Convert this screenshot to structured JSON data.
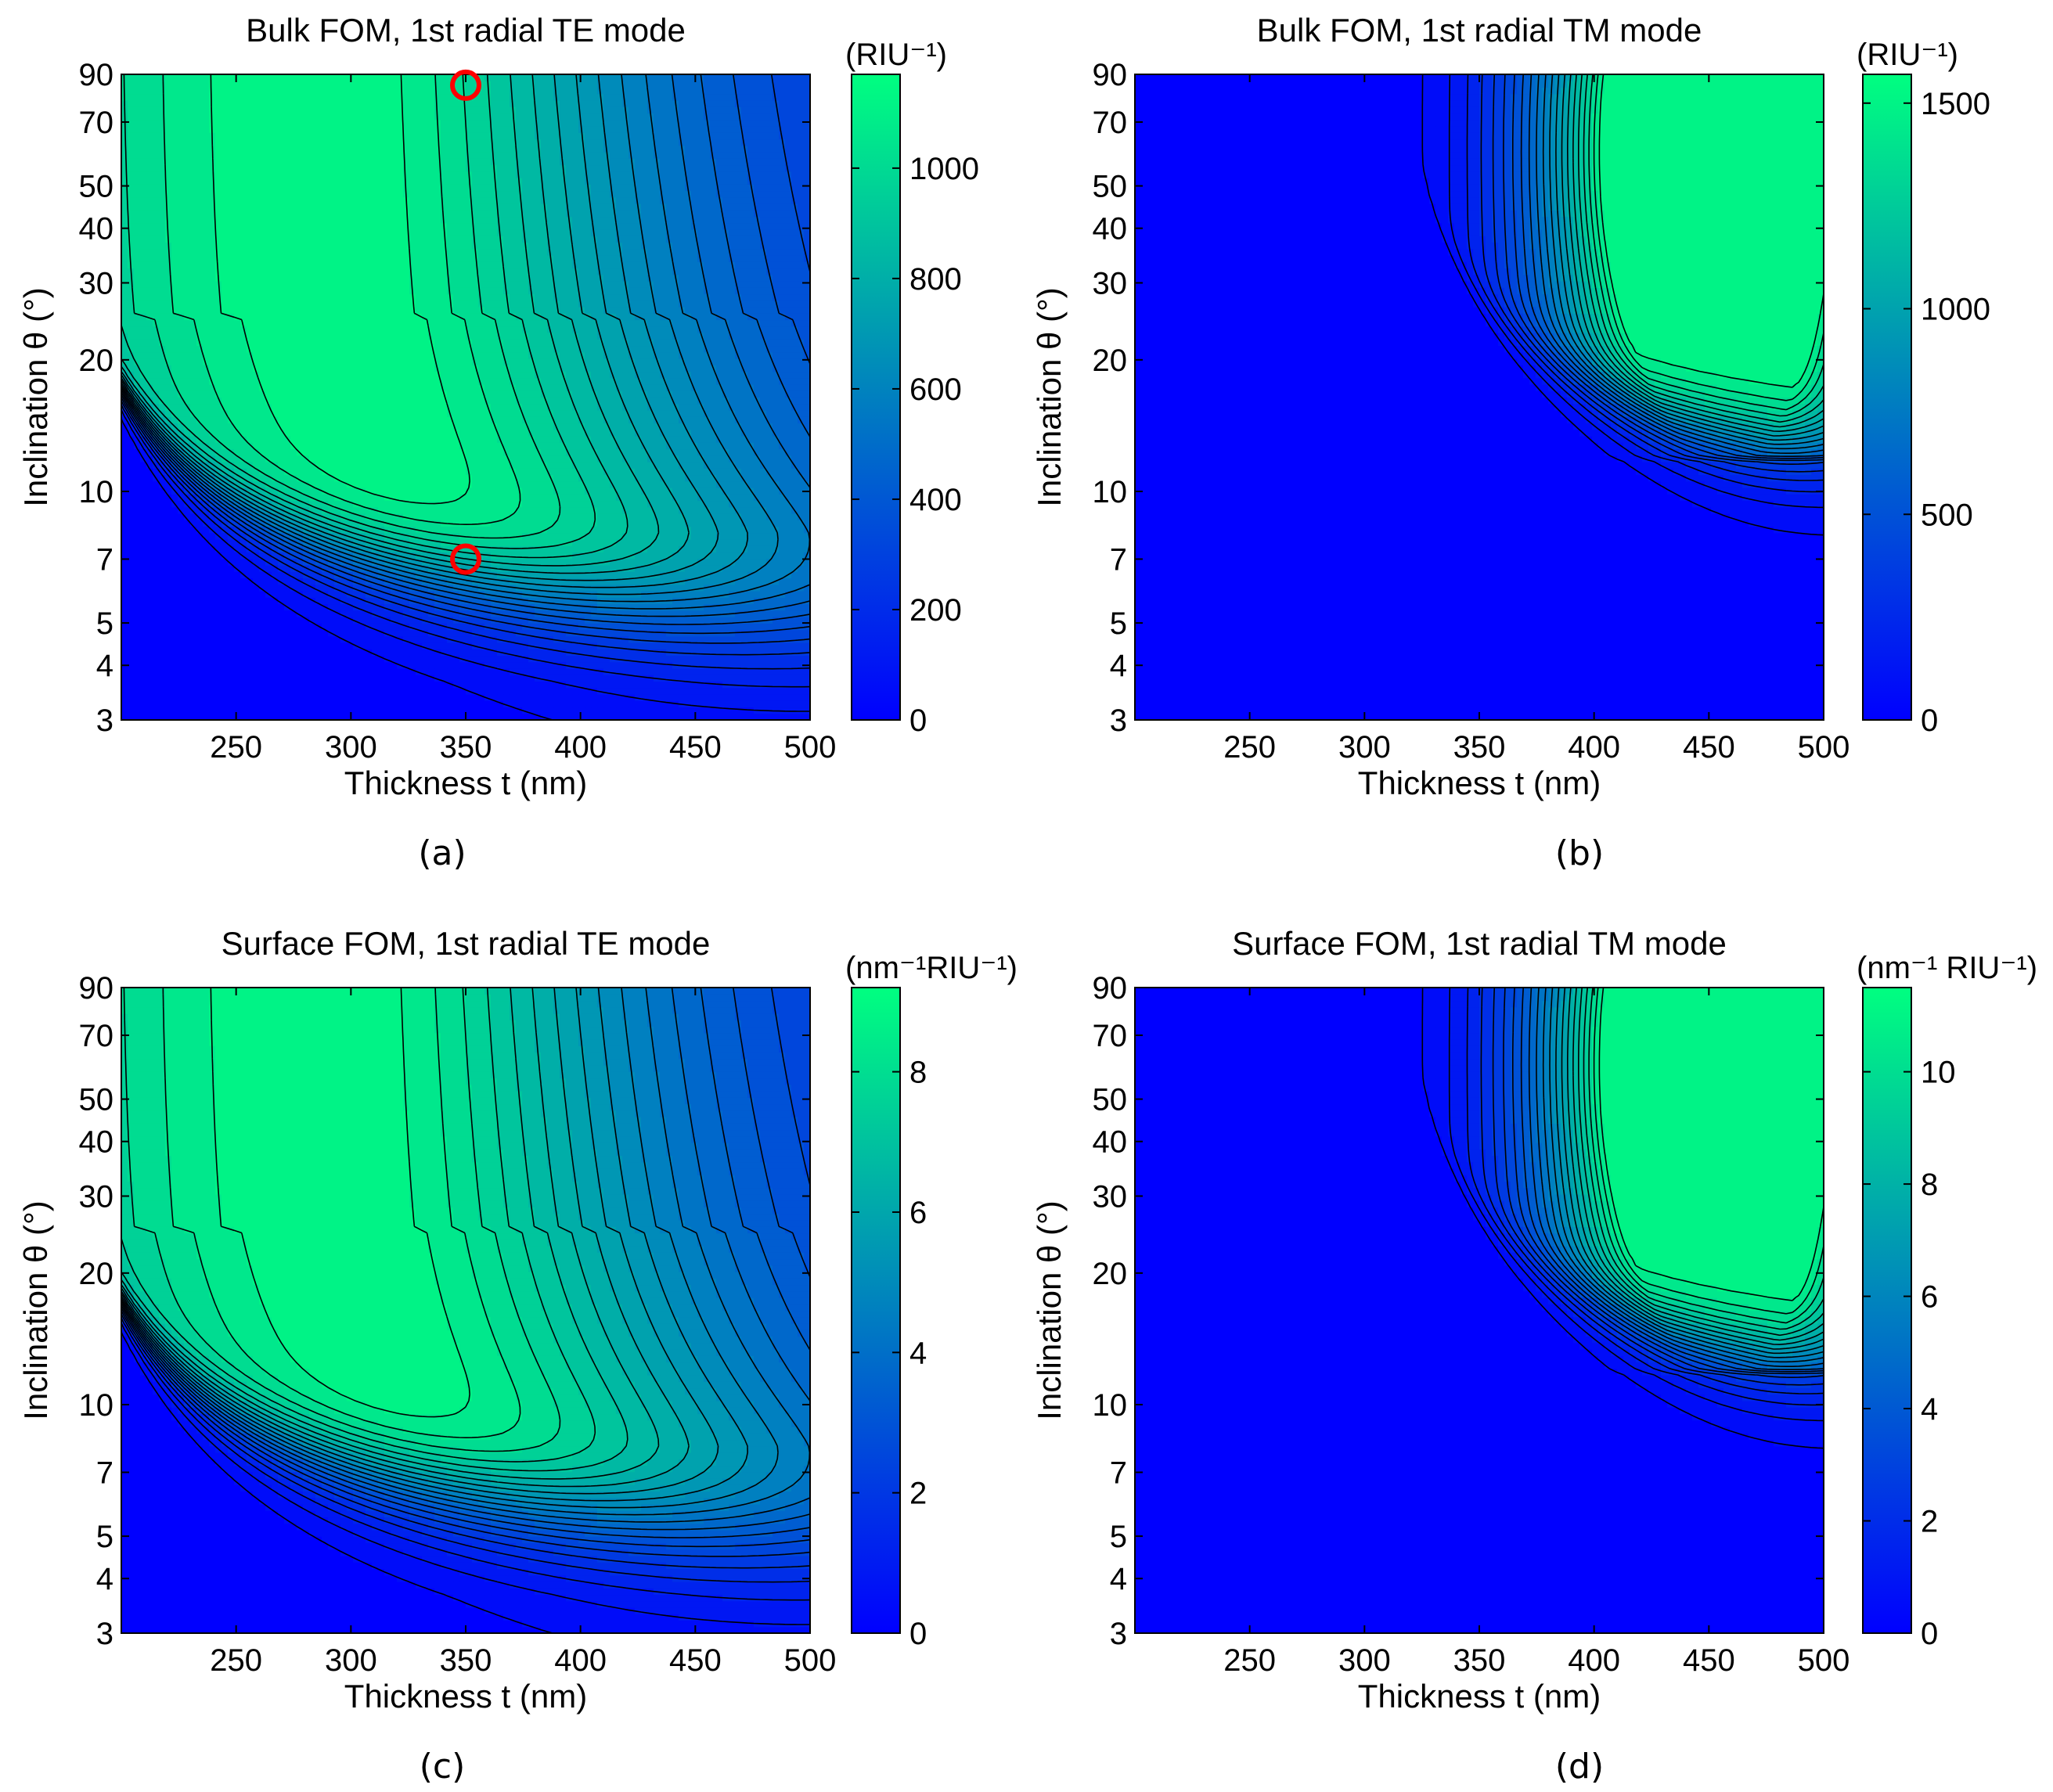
{
  "colors": {
    "low": "#0000ff",
    "high": "#00ff80",
    "contour": "#000000",
    "marker": "#ff0000"
  },
  "chart_data": [
    {
      "type": "contour",
      "panel_label": "(a)",
      "title": "Bulk FOM, 1st radial TE mode",
      "xlabel": "Thickness t (nm)",
      "ylabel": "Inclination  θ (°)",
      "xlim": [
        200,
        500
      ],
      "ylim": [
        3,
        90
      ],
      "yscale": "log",
      "xticks": [
        250,
        300,
        350,
        400,
        450,
        500
      ],
      "yticks": [
        3,
        4,
        5,
        7,
        10,
        20,
        30,
        40,
        50,
        70,
        90
      ],
      "colorbar": {
        "unit": "(RIU⁻¹)",
        "ticks": [
          0,
          200,
          400,
          600,
          800,
          1000
        ],
        "range": [
          0,
          1170
        ]
      },
      "peak": {
        "t": 290,
        "theta": 60,
        "value": 1170
      },
      "mode": "TE",
      "markers": [
        {
          "t": 350,
          "theta": 85
        },
        {
          "t": 350,
          "theta": 7
        }
      ]
    },
    {
      "type": "contour",
      "panel_label": "(b)",
      "title": "Bulk FOM, 1st radial TM mode",
      "xlabel": "Thickness t (nm)",
      "ylabel": "Inclination  θ (°)",
      "xlim": [
        200,
        500
      ],
      "ylim": [
        3,
        90
      ],
      "yscale": "log",
      "xticks": [
        250,
        300,
        350,
        400,
        450,
        500
      ],
      "yticks": [
        3,
        4,
        5,
        7,
        10,
        20,
        30,
        40,
        50,
        70,
        90
      ],
      "colorbar": {
        "unit": "(RIU⁻¹)",
        "ticks": [
          0,
          500,
          1000,
          1500
        ],
        "range": [
          0,
          1570
        ]
      },
      "peak": {
        "t": 445,
        "theta": 60,
        "value": 1570
      },
      "mode": "TM",
      "markers": []
    },
    {
      "type": "contour",
      "panel_label": "(c)",
      "title": "Surface FOM, 1st radial TE mode",
      "xlabel": "Thickness t (nm)",
      "ylabel": "Inclination  θ (°)",
      "xlim": [
        200,
        500
      ],
      "ylim": [
        3,
        90
      ],
      "yscale": "log",
      "xticks": [
        250,
        300,
        350,
        400,
        450,
        500
      ],
      "yticks": [
        3,
        4,
        5,
        7,
        10,
        20,
        30,
        40,
        50,
        70,
        90
      ],
      "colorbar": {
        "unit": "(nm⁻¹RIU⁻¹)",
        "ticks": [
          0,
          2,
          4,
          6,
          8
        ],
        "range": [
          0,
          9.2
        ]
      },
      "peak": {
        "t": 290,
        "theta": 60,
        "value": 9.2
      },
      "mode": "TE",
      "markers": []
    },
    {
      "type": "contour",
      "panel_label": "(d)",
      "title": "Surface FOM, 1st radial TM mode",
      "xlabel": "Thickness t (nm)",
      "ylabel": "Inclination  θ (°)",
      "xlim": [
        200,
        500
      ],
      "ylim": [
        3,
        90
      ],
      "yscale": "log",
      "xticks": [
        250,
        300,
        350,
        400,
        450,
        500
      ],
      "yticks": [
        3,
        4,
        5,
        7,
        10,
        20,
        30,
        40,
        50,
        70,
        90
      ],
      "colorbar": {
        "unit": "(nm⁻¹ RIU⁻¹)",
        "ticks": [
          0,
          2,
          4,
          6,
          8,
          10
        ],
        "range": [
          0,
          11.5
        ]
      },
      "peak": {
        "t": 445,
        "theta": 60,
        "value": 11.5
      },
      "mode": "TM",
      "markers": []
    }
  ]
}
